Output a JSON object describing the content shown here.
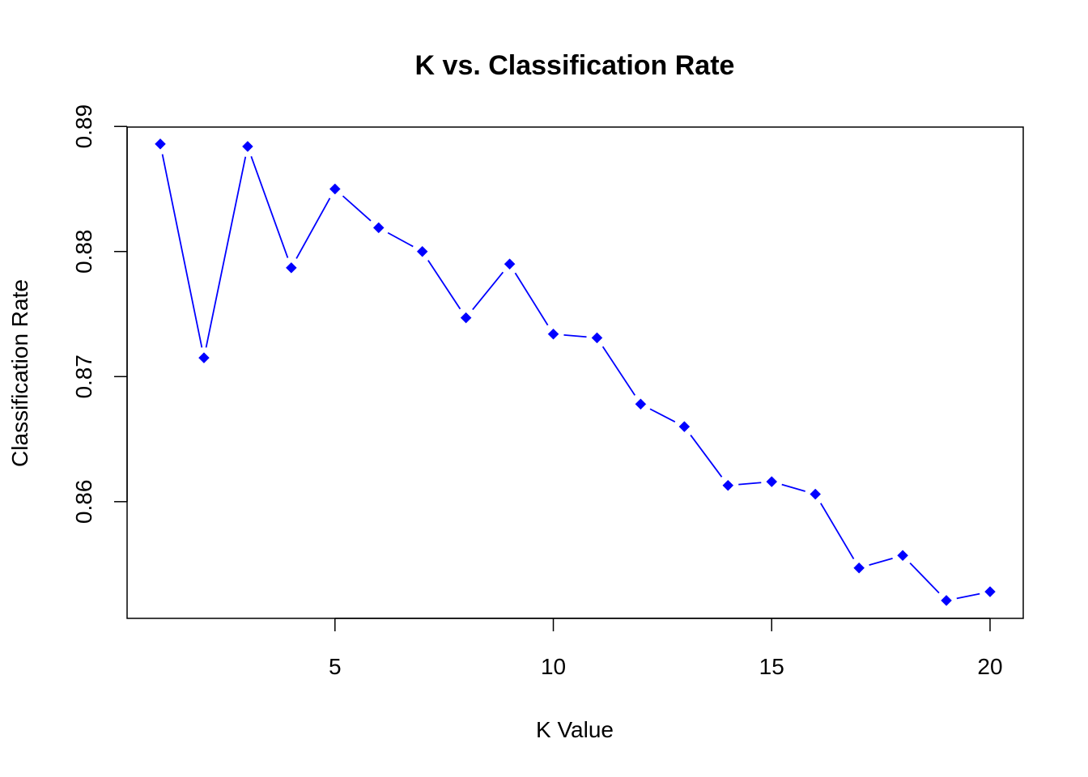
{
  "chart_data": {
    "type": "line",
    "title": "K vs. Classification Rate",
    "xlabel": "K Value",
    "ylabel": "Classification Rate",
    "x": [
      1,
      2,
      3,
      4,
      5,
      6,
      7,
      8,
      9,
      10,
      11,
      12,
      13,
      14,
      15,
      16,
      17,
      18,
      19,
      20
    ],
    "series": [
      {
        "values": [
          0.8886,
          0.8715,
          0.8884,
          0.8787,
          0.885,
          0.8819,
          0.88,
          0.8747,
          0.879,
          0.8734,
          0.8731,
          0.8678,
          0.866,
          0.8613,
          0.8616,
          0.8606,
          0.8547,
          0.8557,
          0.8521,
          0.8528
        ],
        "color": "#0000ff",
        "marker": "filled-diamond",
        "line": "solid-with-gaps"
      }
    ],
    "x_ticks": [
      "5",
      "10",
      "15",
      "20"
    ],
    "x_tick_values": [
      5,
      10,
      15,
      20
    ],
    "y_ticks": [
      "0.86",
      "0.87",
      "0.88",
      "0.89"
    ],
    "y_tick_values": [
      0.86,
      0.87,
      0.88,
      0.89
    ],
    "xlim": [
      0.24,
      20.76
    ],
    "ylim": [
      0.85067,
      0.88995
    ],
    "grid": false,
    "legend": "none",
    "box": true
  }
}
